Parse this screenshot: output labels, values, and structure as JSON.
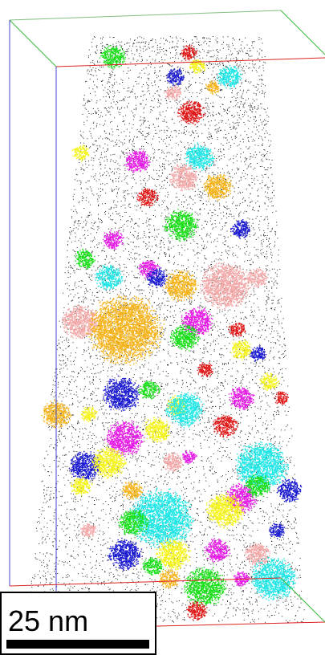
{
  "scale_bar": {
    "label": "25 nm"
  }
}
